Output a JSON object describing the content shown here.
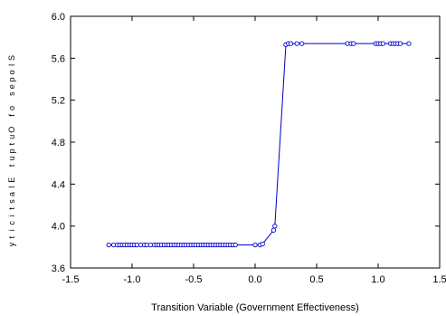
{
  "chart_data": {
    "type": "line",
    "title": "",
    "xlabel": "Transition Variable (Government Effectiveness)",
    "ylabel": "Slopes of Output Elasticity",
    "xlim": [
      -1.5,
      1.5
    ],
    "ylim": [
      3.6,
      6.0
    ],
    "xticks": [
      -1.5,
      -1.0,
      -0.5,
      0.0,
      0.5,
      1.0,
      1.5
    ],
    "xtick_labels": [
      "-1.5",
      "-1.0",
      "-0.5",
      "0.0",
      "0.5",
      "1.0",
      "1.5"
    ],
    "yticks": [
      3.6,
      4.0,
      4.4,
      4.8,
      5.2,
      5.6,
      6.0
    ],
    "ytick_labels": [
      "3.6",
      "4.0",
      "4.4",
      "4.8",
      "5.2",
      "5.6",
      "6.0"
    ],
    "grid": false,
    "legend": "none",
    "series": [
      {
        "color": "#0000cc",
        "marker": "circle-open",
        "x": [
          -1.19,
          -1.15,
          -1.12,
          -1.1,
          -1.08,
          -1.06,
          -1.04,
          -1.02,
          -1.0,
          -0.98,
          -0.96,
          -0.93,
          -0.9,
          -0.88,
          -0.85,
          -0.82,
          -0.8,
          -0.78,
          -0.76,
          -0.74,
          -0.72,
          -0.7,
          -0.68,
          -0.66,
          -0.64,
          -0.62,
          -0.6,
          -0.58,
          -0.56,
          -0.54,
          -0.52,
          -0.5,
          -0.48,
          -0.46,
          -0.44,
          -0.42,
          -0.4,
          -0.38,
          -0.36,
          -0.34,
          -0.32,
          -0.3,
          -0.28,
          -0.26,
          -0.24,
          -0.22,
          -0.2,
          -0.18,
          -0.16,
          0.0,
          0.04,
          0.06,
          0.15,
          0.16,
          0.25,
          0.27,
          0.29,
          0.34,
          0.38,
          0.75,
          0.78,
          0.8,
          0.98,
          1.0,
          1.02,
          1.04,
          1.1,
          1.12,
          1.14,
          1.16,
          1.18,
          1.25
        ],
        "y": [
          3.82,
          3.82,
          3.82,
          3.82,
          3.82,
          3.82,
          3.82,
          3.82,
          3.82,
          3.82,
          3.82,
          3.82,
          3.82,
          3.82,
          3.82,
          3.82,
          3.82,
          3.82,
          3.82,
          3.82,
          3.82,
          3.82,
          3.82,
          3.82,
          3.82,
          3.82,
          3.82,
          3.82,
          3.82,
          3.82,
          3.82,
          3.82,
          3.82,
          3.82,
          3.82,
          3.82,
          3.82,
          3.82,
          3.82,
          3.82,
          3.82,
          3.82,
          3.82,
          3.82,
          3.82,
          3.82,
          3.82,
          3.82,
          3.82,
          3.82,
          3.82,
          3.83,
          3.96,
          4.0,
          5.73,
          5.74,
          5.74,
          5.74,
          5.74,
          5.74,
          5.74,
          5.74,
          5.74,
          5.74,
          5.74,
          5.74,
          5.74,
          5.74,
          5.74,
          5.74,
          5.74,
          5.74
        ]
      }
    ]
  }
}
